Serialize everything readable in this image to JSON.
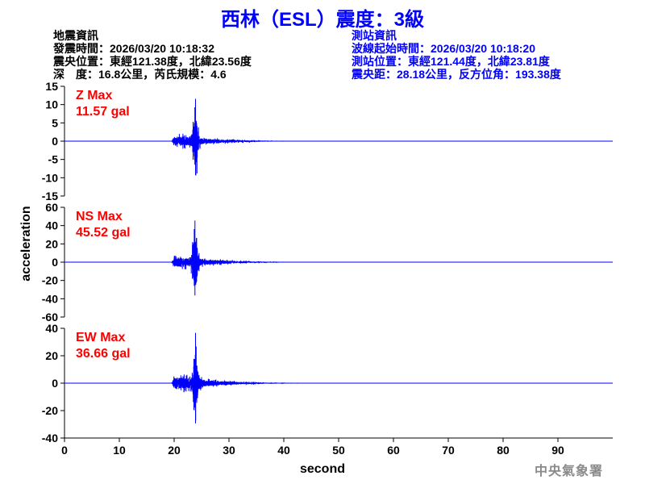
{
  "title": "西林（ESL）震度：3級",
  "quake_info": {
    "heading": "地震資訊",
    "lines": [
      "發震時間：2026/03/20 10:18:32",
      "震央位置：東經121.38度，北緯23.56度",
      "深　度：16.8公里，芮氏規模：4.6"
    ]
  },
  "station_info": {
    "heading": "測站資訊",
    "lines": [
      "波線起始時間：2026/03/20 10:18:20",
      "測站位置：東經121.44度，北緯23.81度",
      "震央距：28.18公里，反方位角：193.38度"
    ]
  },
  "watermark": "中央氣象署",
  "colors": {
    "trace": "#0000ff",
    "label": "#ff0000",
    "title": "#0000ff",
    "axis": "#000000"
  },
  "chart_data": {
    "type": "line",
    "xlabel": "second",
    "ylabel": "acceleration",
    "xlim": [
      0,
      100
    ],
    "xticks": [
      0,
      10,
      20,
      30,
      40,
      50,
      60,
      70,
      80,
      90
    ],
    "grid": false,
    "panels": [
      {
        "component": "Z",
        "label": "Z Max",
        "max_label": "11.57 gal",
        "peak": 11.57,
        "ylim": [
          -15,
          15
        ],
        "yticks": [
          15,
          10,
          5,
          0,
          -5,
          -10,
          -15
        ],
        "onset_s": 19.5,
        "peak_time_s": 23.9
      },
      {
        "component": "NS",
        "label": "NS Max",
        "max_label": "45.52 gal",
        "peak": 45.52,
        "ylim": [
          -60,
          60
        ],
        "yticks": [
          60,
          40,
          20,
          0,
          -20,
          -40,
          -60
        ],
        "onset_s": 19.5,
        "peak_time_s": 23.8
      },
      {
        "component": "EW",
        "label": "EW Max",
        "max_label": "36.66 gal",
        "peak": 36.66,
        "ylim": [
          -40,
          40
        ],
        "yticks": [
          40,
          20,
          0,
          -20,
          -40
        ],
        "onset_s": 19.5,
        "peak_time_s": 23.9
      }
    ]
  }
}
